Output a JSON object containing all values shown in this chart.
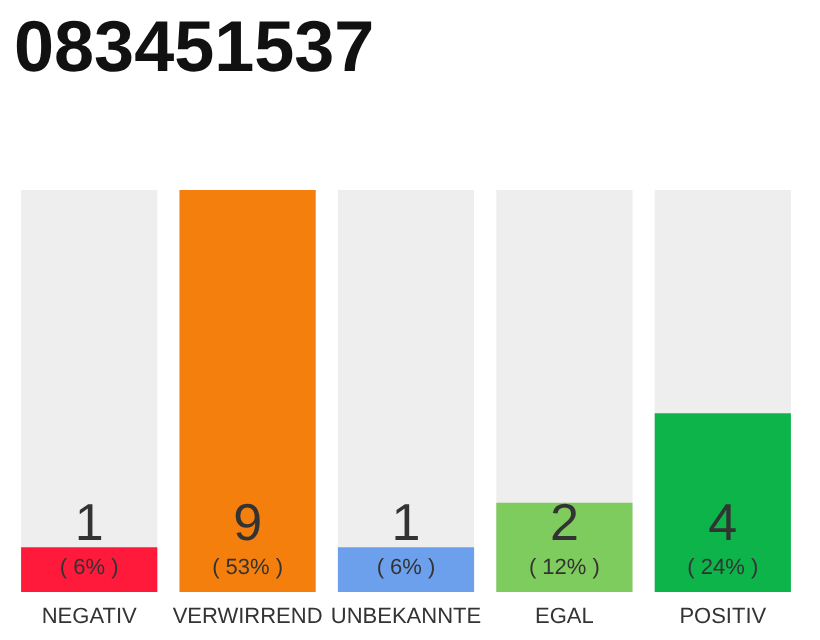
{
  "chart_data": {
    "type": "bar",
    "title": "083451537",
    "categories": [
      "NEGATIV",
      "VERWIRREND",
      "UNBEKANNTE",
      "EGAL",
      "POSITIV"
    ],
    "values": [
      1,
      9,
      1,
      2,
      4
    ],
    "colors": [
      "#ff1a3c",
      "#f57f0c",
      "#6ca0ec",
      "#7fcc5e",
      "#0db44a"
    ],
    "value_labels": [
      "1\n( 6% )",
      "9\n( 53% )",
      "1\n( 6% )",
      "2\n( 12% )",
      "4\n( 24% )"
    ]
  }
}
